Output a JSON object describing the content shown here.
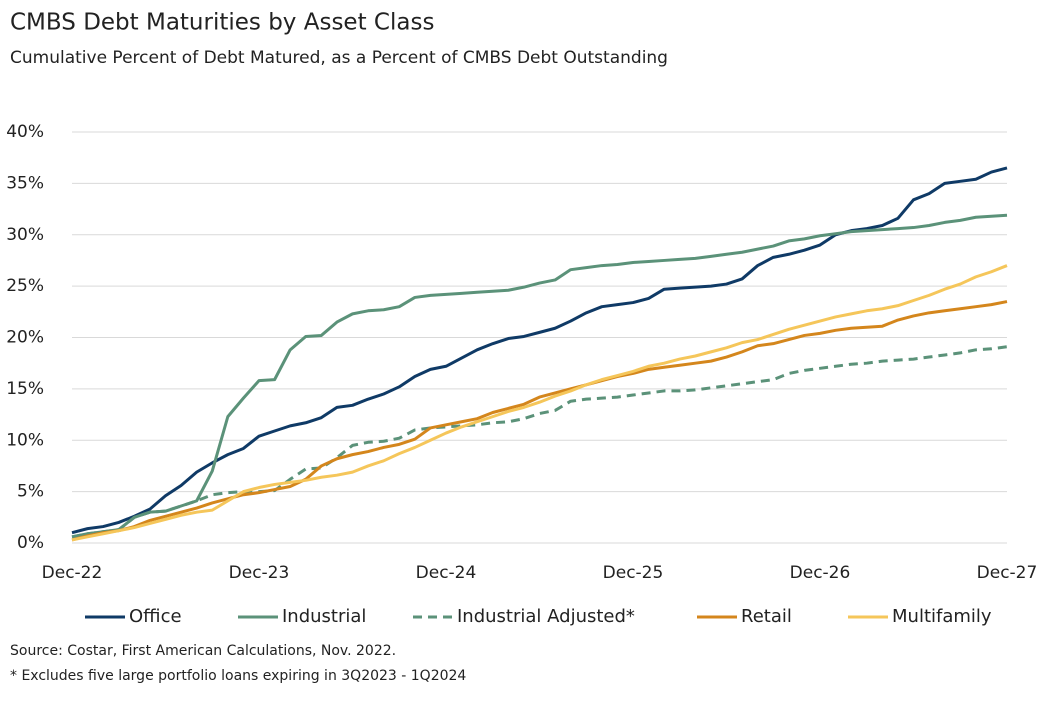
{
  "chart_data": {
    "type": "line",
    "title": "CMBS Debt Maturities by Asset Class",
    "subtitle": "Cumulative Percent of Debt Matured, as a Percent of CMBS Debt Outstanding",
    "notes": [
      "Source: Costar, First American Calculations, Nov. 2022.",
      "* Excludes five large portfolio loans expiring in 3Q2023 - 1Q2024"
    ],
    "categories": [
      "Dec-22",
      null,
      null,
      null,
      null,
      null,
      null,
      null,
      null,
      null,
      null,
      null,
      "Dec-23",
      null,
      null,
      null,
      null,
      null,
      null,
      null,
      null,
      null,
      null,
      null,
      "Dec-24",
      null,
      null,
      null,
      null,
      null,
      null,
      null,
      null,
      null,
      null,
      null,
      "Dec-25",
      null,
      null,
      null,
      null,
      null,
      null,
      null,
      null,
      null,
      null,
      null,
      "Dec-26",
      null,
      null,
      null,
      null,
      null,
      null,
      null,
      null,
      null,
      null,
      null,
      "Dec-27"
    ],
    "ylim": [
      0,
      40
    ],
    "yticks": [
      {
        "value": 0,
        "label": "0%"
      },
      {
        "value": 5,
        "label": "5%"
      },
      {
        "value": 10,
        "label": "10%"
      },
      {
        "value": 15,
        "label": "15%"
      },
      {
        "value": 20,
        "label": "20%"
      },
      {
        "value": 25,
        "label": "25%"
      },
      {
        "value": 30,
        "label": "30%"
      },
      {
        "value": 35,
        "label": "35%"
      },
      {
        "value": 40,
        "label": "40%"
      }
    ],
    "grid": true,
    "legend": "bottom",
    "series": [
      {
        "name": "Office",
        "color": "#0f3a66",
        "values": [
          1.0,
          1.4,
          1.6,
          2.0,
          2.6,
          3.3,
          4.6,
          5.6,
          6.9,
          7.8,
          8.6,
          9.2,
          10.4,
          10.9,
          11.4,
          11.7,
          12.2,
          13.2,
          13.4,
          14.0,
          14.5,
          15.2,
          16.2,
          16.9,
          17.2,
          18.0,
          18.8,
          19.4,
          19.9,
          20.1,
          20.5,
          20.9,
          21.6,
          22.4,
          23.0,
          23.2,
          23.4,
          23.8,
          24.7,
          24.8,
          24.9,
          25.0,
          25.2,
          25.7,
          27.0,
          27.8,
          28.1,
          28.5,
          29.0,
          30.0,
          30.4,
          30.6,
          30.9,
          31.6,
          33.4,
          34.0,
          35.0,
          35.2,
          35.4,
          36.1,
          36.5
        ]
      },
      {
        "name": "Industrial",
        "color": "#5b9279",
        "values": [
          0.6,
          0.9,
          1.1,
          1.3,
          2.5,
          3.0,
          3.1,
          3.6,
          4.1,
          7.0,
          12.3,
          14.1,
          15.8,
          15.9,
          18.8,
          20.1,
          20.2,
          21.5,
          22.3,
          22.6,
          22.7,
          23.0,
          23.9,
          24.1,
          24.2,
          24.3,
          24.4,
          24.5,
          24.6,
          24.9,
          25.3,
          25.6,
          26.6,
          26.8,
          27.0,
          27.1,
          27.3,
          27.4,
          27.5,
          27.6,
          27.7,
          27.9,
          28.1,
          28.3,
          28.6,
          28.9,
          29.4,
          29.6,
          29.9,
          30.1,
          30.3,
          30.4,
          30.5,
          30.6,
          30.7,
          30.9,
          31.2,
          31.4,
          31.7,
          31.8,
          31.9
        ]
      },
      {
        "name": "Industrial Adjusted*",
        "color": "#5b9279",
        "dashed": true,
        "values": [
          0.6,
          0.9,
          1.1,
          1.3,
          2.5,
          3.0,
          3.1,
          3.6,
          4.1,
          4.7,
          4.9,
          5.0,
          5.0,
          5.1,
          6.2,
          7.2,
          7.3,
          8.3,
          9.5,
          9.8,
          9.9,
          10.2,
          11.0,
          11.2,
          11.3,
          11.4,
          11.5,
          11.7,
          11.8,
          12.1,
          12.6,
          12.9,
          13.8,
          14.0,
          14.1,
          14.2,
          14.4,
          14.6,
          14.8,
          14.8,
          14.9,
          15.1,
          15.3,
          15.5,
          15.7,
          15.9,
          16.5,
          16.8,
          17.0,
          17.2,
          17.4,
          17.5,
          17.7,
          17.8,
          17.9,
          18.1,
          18.3,
          18.5,
          18.8,
          18.9,
          19.1
        ]
      },
      {
        "name": "Retail",
        "color": "#d4861c",
        "values": [
          0.3,
          0.7,
          1.0,
          1.2,
          1.6,
          2.2,
          2.6,
          3.0,
          3.4,
          3.9,
          4.3,
          4.7,
          4.9,
          5.2,
          5.5,
          6.2,
          7.5,
          8.2,
          8.6,
          8.9,
          9.3,
          9.6,
          10.1,
          11.2,
          11.5,
          11.8,
          12.1,
          12.7,
          13.1,
          13.5,
          14.2,
          14.6,
          15.0,
          15.4,
          15.8,
          16.2,
          16.5,
          16.9,
          17.1,
          17.3,
          17.5,
          17.7,
          18.1,
          18.6,
          19.2,
          19.4,
          19.8,
          20.2,
          20.4,
          20.7,
          20.9,
          21.0,
          21.1,
          21.7,
          22.1,
          22.4,
          22.6,
          22.8,
          23.0,
          23.2,
          23.5
        ]
      },
      {
        "name": "Multifamily",
        "color": "#f5c65a",
        "values": [
          0.3,
          0.6,
          0.9,
          1.2,
          1.5,
          1.9,
          2.3,
          2.7,
          3.0,
          3.2,
          4.1,
          5.0,
          5.4,
          5.7,
          5.9,
          6.1,
          6.4,
          6.6,
          6.9,
          7.5,
          8.0,
          8.7,
          9.3,
          10.0,
          10.7,
          11.3,
          11.8,
          12.3,
          12.8,
          13.2,
          13.7,
          14.3,
          14.8,
          15.4,
          15.9,
          16.3,
          16.7,
          17.2,
          17.5,
          17.9,
          18.2,
          18.6,
          19.0,
          19.5,
          19.8,
          20.3,
          20.8,
          21.2,
          21.6,
          22.0,
          22.3,
          22.6,
          22.8,
          23.1,
          23.6,
          24.1,
          24.7,
          25.2,
          25.9,
          26.4,
          27.0
        ]
      }
    ]
  }
}
